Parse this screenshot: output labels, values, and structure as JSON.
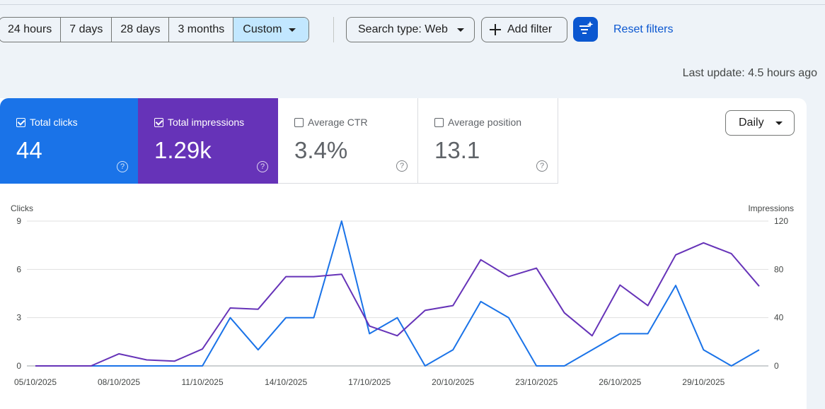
{
  "filters": {
    "date_ranges": [
      "24 hours",
      "7 days",
      "28 days",
      "3 months",
      "Custom"
    ],
    "selected_range": "Custom",
    "search_type_label": "Search type: Web",
    "add_filter_label": "Add filter",
    "reset_label": "Reset filters"
  },
  "last_update": "Last update: 4.5 hours ago",
  "metrics": [
    {
      "label": "Total clicks",
      "value": "44",
      "checked": true,
      "color": "#1a73e8"
    },
    {
      "label": "Total impressions",
      "value": "1.29k",
      "checked": true,
      "color": "#6633b8"
    },
    {
      "label": "Average CTR",
      "value": "3.4%",
      "checked": false
    },
    {
      "label": "Average position",
      "value": "13.1",
      "checked": false
    }
  ],
  "granularity": "Daily",
  "icons": [
    "caret-down-icon",
    "plus-icon",
    "filter-sparkle-icon",
    "checkbox-icon",
    "help-icon"
  ],
  "chart_data": {
    "type": "line",
    "y_left_label": "Clicks",
    "y_right_label": "Impressions",
    "y_left_ticks": [
      "0",
      "3",
      "6",
      "9"
    ],
    "y_right_ticks": [
      "0",
      "40",
      "80",
      "120"
    ],
    "ylim_left": [
      0,
      9
    ],
    "ylim_right": [
      0,
      120
    ],
    "x_tick_labels": [
      "05/10/2025",
      "08/10/2025",
      "11/10/2025",
      "14/10/2025",
      "17/10/2025",
      "20/10/2025",
      "23/10/2025",
      "26/10/2025",
      "29/10/2025"
    ],
    "x": [
      "05/10/2025",
      "06/10/2025",
      "07/10/2025",
      "08/10/2025",
      "09/10/2025",
      "10/10/2025",
      "11/10/2025",
      "12/10/2025",
      "13/10/2025",
      "14/10/2025",
      "15/10/2025",
      "16/10/2025",
      "17/10/2025",
      "18/10/2025",
      "19/10/2025",
      "20/10/2025",
      "21/10/2025",
      "22/10/2025",
      "23/10/2025",
      "24/10/2025",
      "25/10/2025",
      "26/10/2025",
      "27/10/2025",
      "28/10/2025",
      "29/10/2025",
      "30/10/2025",
      "31/10/2025"
    ],
    "series": [
      {
        "name": "Total clicks",
        "axis": "left",
        "color": "#1a73e8",
        "values": [
          0,
          0,
          0,
          0,
          0,
          0,
          0,
          3,
          1,
          3,
          3,
          9,
          2,
          3,
          0,
          1,
          4,
          3,
          0,
          0,
          1,
          2,
          2,
          5,
          1,
          0,
          1
        ]
      },
      {
        "name": "Total impressions",
        "axis": "right",
        "color": "#6633b8",
        "values": [
          0,
          0,
          0,
          10,
          5,
          4,
          14,
          48,
          47,
          74,
          74,
          76,
          33,
          25,
          46,
          50,
          88,
          74,
          81,
          44,
          25,
          67,
          50,
          92,
          102,
          93,
          66
        ]
      }
    ],
    "grid": true
  }
}
